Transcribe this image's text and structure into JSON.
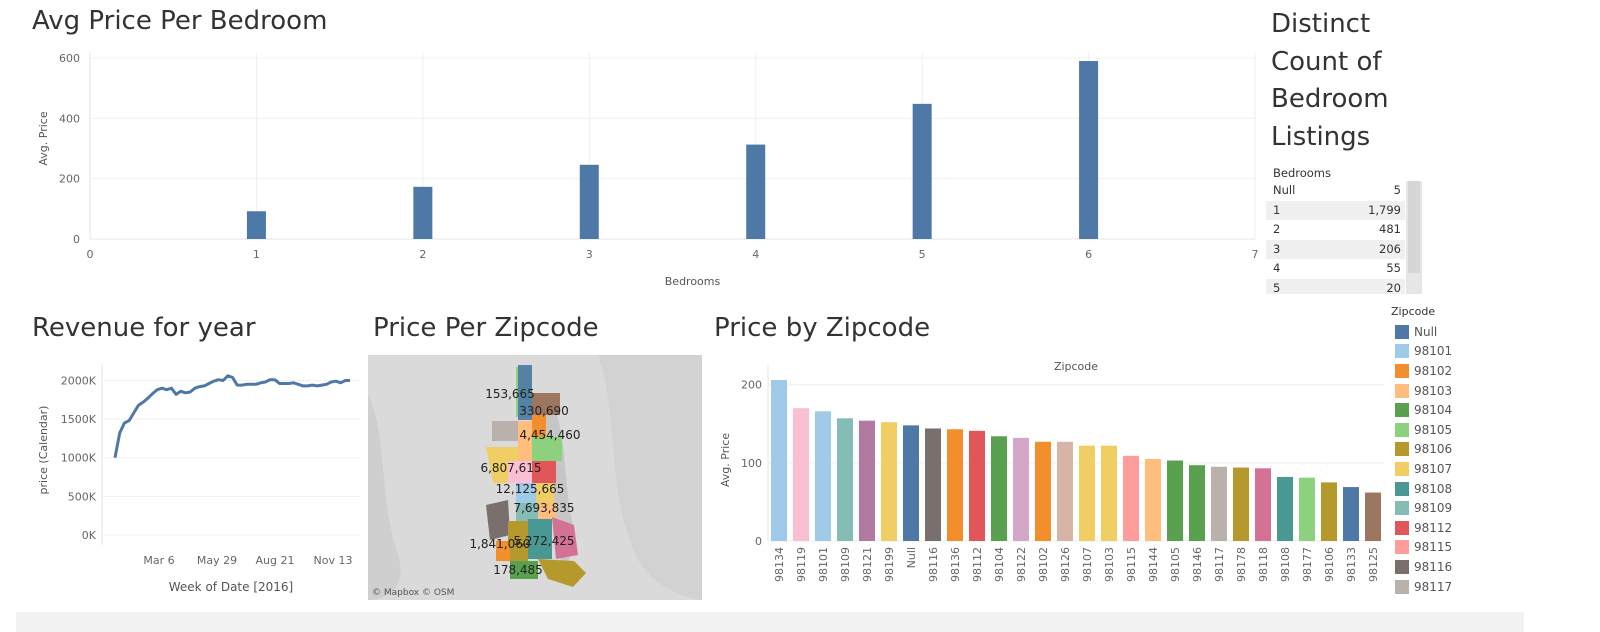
{
  "panels": {
    "bedroom": {
      "title": "Avg Price Per Bedroom"
    },
    "distinct": {
      "title": "Distinct Count of Bedroom Listings"
    },
    "revenue": {
      "title": "Revenue for year"
    },
    "zipmap": {
      "title": "Price Per Zipcode",
      "credit": "© Mapbox  © OSM"
    },
    "zipbar": {
      "title": "Price by Zipcode"
    }
  },
  "distinct_table": {
    "header": "Bedrooms",
    "rows": [
      {
        "key": "Null",
        "value": "5"
      },
      {
        "key": "1",
        "value": "1,799"
      },
      {
        "key": "2",
        "value": "481"
      },
      {
        "key": "3",
        "value": "206"
      },
      {
        "key": "4",
        "value": "55"
      },
      {
        "key": "5",
        "value": "20"
      }
    ]
  },
  "legend": {
    "title": "Zipcode",
    "items": [
      {
        "label": "Null",
        "color": "#4e79a7"
      },
      {
        "label": "98101",
        "color": "#a0cbe8"
      },
      {
        "label": "98102",
        "color": "#f28e2b"
      },
      {
        "label": "98103",
        "color": "#ffbe7d"
      },
      {
        "label": "98104",
        "color": "#59a14f"
      },
      {
        "label": "98105",
        "color": "#8cd17d"
      },
      {
        "label": "98106",
        "color": "#b6992d"
      },
      {
        "label": "98107",
        "color": "#f1ce63"
      },
      {
        "label": "98108",
        "color": "#499894"
      },
      {
        "label": "98109",
        "color": "#86bcb6"
      },
      {
        "label": "98112",
        "color": "#e15759"
      },
      {
        "label": "98115",
        "color": "#ff9d9a"
      },
      {
        "label": "98116",
        "color": "#79706e"
      },
      {
        "label": "98117",
        "color": "#bab0ac"
      }
    ]
  },
  "map_labels": [
    "153,665",
    "330,690",
    "4,454,460",
    "6,807,615",
    "12,125,665",
    "7,693,835",
    "1,841,060",
    "5,272,425",
    "178,485"
  ],
  "chart_data": [
    {
      "type": "bar",
      "title": "Avg Price Per Bedroom",
      "xlabel": "Bedrooms",
      "ylabel": "Avg. Price",
      "x": [
        1,
        2,
        3,
        4,
        5,
        6
      ],
      "values": [
        92,
        173,
        246,
        313,
        448,
        590
      ],
      "xlim": [
        0,
        7
      ],
      "xticks": [
        0,
        1,
        2,
        3,
        4,
        5,
        6,
        7
      ],
      "ylim": [
        0,
        600
      ],
      "yticks": [
        0,
        200,
        400,
        600
      ],
      "color": "#4e79a7",
      "grid": true
    },
    {
      "type": "line",
      "title": "Revenue for year",
      "xlabel": "Week of Date [2016]",
      "ylabel": "price (Calendar)",
      "xtick_labels": [
        "Mar 6",
        "May 29",
        "Aug 21",
        "Nov 13"
      ],
      "yticks": [
        0,
        500,
        1000,
        1500,
        2000
      ],
      "ytick_labels": [
        "0K",
        "500K",
        "1000K",
        "1500K",
        "2000K"
      ],
      "ylim": [
        0,
        2200
      ],
      "values": [
        1000,
        1320,
        1450,
        1480,
        1580,
        1680,
        1720,
        1770,
        1830,
        1880,
        1900,
        1880,
        1900,
        1820,
        1860,
        1840,
        1850,
        1900,
        1920,
        1930,
        1960,
        1990,
        2010,
        2000,
        2060,
        2040,
        1940,
        1940,
        1950,
        1950,
        1950,
        1970,
        1980,
        2010,
        2010,
        1960,
        1960,
        1960,
        1970,
        1950,
        1930,
        1930,
        1940,
        1930,
        1940,
        1950,
        1980,
        1990,
        1970,
        2000,
        2000
      ],
      "color": "#4e79a7"
    },
    {
      "type": "bar",
      "title": "Price by Zipcode",
      "xlabel": "Zipcode",
      "ylabel": "Avg. Price",
      "ylim": [
        0,
        215
      ],
      "yticks": [
        0,
        100,
        200
      ],
      "categories": [
        "98134",
        "98119",
        "98101",
        "98109",
        "98121",
        "98199",
        "Null",
        "98116",
        "98136",
        "98112",
        "98104",
        "98122",
        "98102",
        "98126",
        "98107",
        "98103",
        "98115",
        "98144",
        "98105",
        "98146",
        "98117",
        "98178",
        "98118",
        "98108",
        "98177",
        "98106",
        "98133",
        "98125"
      ],
      "values": [
        206,
        170,
        166,
        157,
        154,
        152,
        148,
        144,
        143,
        141,
        134,
        132,
        127,
        127,
        122,
        122,
        109,
        105,
        103,
        97,
        95,
        94,
        93,
        82,
        81,
        75,
        69,
        62
      ],
      "colors": [
        "#a0cbe8",
        "#fabfd2",
        "#a0cbe8",
        "#86bcb6",
        "#b07aa1",
        "#f1ce63",
        "#4e79a7",
        "#79706e",
        "#f28e2b",
        "#e15759",
        "#59a14f",
        "#d4a6c8",
        "#f28e2b",
        "#d7b5a6",
        "#f1ce63",
        "#f1ce63",
        "#ff9d9a",
        "#ffbe7d",
        "#59a14f",
        "#59a14f",
        "#bab0ac",
        "#b6992d",
        "#d37295",
        "#499894",
        "#8cd17d",
        "#b6992d",
        "#4e79a7",
        "#9d7660"
      ]
    }
  ]
}
